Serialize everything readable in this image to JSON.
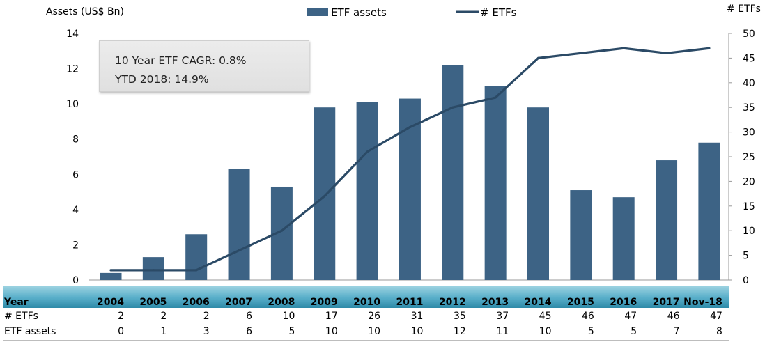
{
  "chart_data": {
    "type": "bar+line",
    "ylabel_left": "Assets (US$ Bn)",
    "ylabel_right": "# ETFs",
    "ylim_left": [
      0,
      14
    ],
    "ylim_right": [
      0,
      50
    ],
    "yticks_left": [
      "0",
      "2",
      "4",
      "6",
      "8",
      "10",
      "12",
      "14"
    ],
    "yticks_right": [
      "0",
      "5",
      "10",
      "15",
      "20",
      "25",
      "30",
      "35",
      "40",
      "45",
      "50"
    ],
    "categories": [
      "2004",
      "2005",
      "2006",
      "2007",
      "2008",
      "2009",
      "2010",
      "2011",
      "2012",
      "2013",
      "2014",
      "2015",
      "2016",
      "2017",
      "Nov-18"
    ],
    "series": [
      {
        "name": "ETF assets",
        "type": "bar",
        "axis": "left",
        "values": [
          0.4,
          1.3,
          2.6,
          6.3,
          5.3,
          9.8,
          10.1,
          10.3,
          12.2,
          11.0,
          9.8,
          5.1,
          4.7,
          6.8,
          7.8
        ]
      },
      {
        "name": "# ETFs",
        "type": "line",
        "axis": "right",
        "values": [
          2,
          2,
          2,
          6,
          10,
          17,
          26,
          31,
          35,
          37,
          45,
          46,
          47,
          46,
          47
        ]
      }
    ],
    "legend_position": "top-center",
    "colors": {
      "bar": "#3d6385",
      "line": "#2b4a66"
    },
    "annotation": {
      "line1": "10 Year ETF CAGR: 0.8%",
      "line2": "YTD 2018: 14.9%"
    },
    "table": {
      "headers": {
        "year": "Year",
        "etfs": "# ETFs",
        "assets": "ETF assets"
      },
      "etfs_row": [
        "2",
        "2",
        "2",
        "6",
        "10",
        "17",
        "26",
        "31",
        "35",
        "37",
        "45",
        "46",
        "47",
        "46",
        "47"
      ],
      "assets_row": [
        "0",
        "1",
        "3",
        "6",
        "5",
        "10",
        "10",
        "10",
        "12",
        "11",
        "10",
        "5",
        "5",
        "7",
        "8"
      ]
    }
  }
}
